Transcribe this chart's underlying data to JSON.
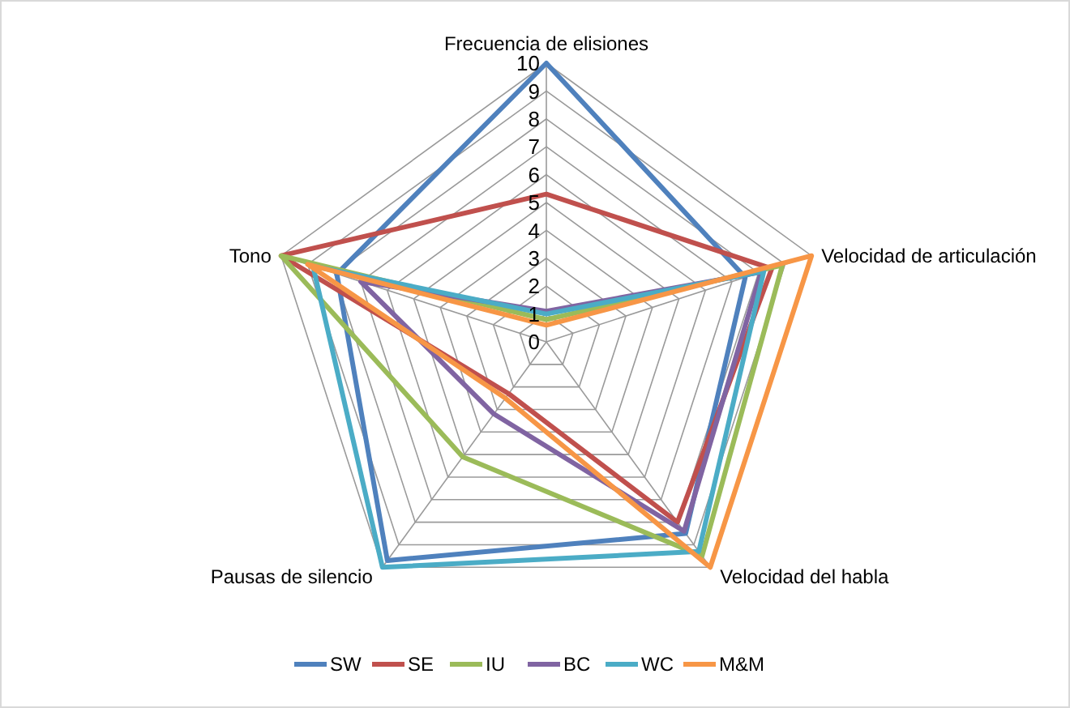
{
  "chart_data": {
    "type": "radar",
    "categories": [
      "Frecuencia de elisiones",
      "Velocidad de articulación",
      "Velocidad del habla",
      "Pausas de silencio",
      "Tono"
    ],
    "series": [
      {
        "name": "SW",
        "color": "#4f81bd",
        "values": [
          10,
          7.5,
          8.5,
          9.7,
          7.9
        ]
      },
      {
        "name": "SE",
        "color": "#c0504d",
        "values": [
          5.3,
          8.5,
          8.0,
          2.3,
          10
        ]
      },
      {
        "name": "IU",
        "color": "#9bbb59",
        "values": [
          0.8,
          8.9,
          9.5,
          5.1,
          10
        ]
      },
      {
        "name": "BC",
        "color": "#8064a2",
        "values": [
          1.1,
          8.1,
          8.4,
          3.2,
          7.0
        ]
      },
      {
        "name": "WC",
        "color": "#4bacc6",
        "values": [
          1.0,
          8.2,
          9.3,
          10,
          8.8
        ]
      },
      {
        "name": "M&M",
        "color": "#f79646",
        "values": [
          0.6,
          10,
          10,
          2.5,
          9.0
        ]
      }
    ],
    "ylim": [
      0,
      10
    ],
    "yticks": [
      0,
      1,
      2,
      3,
      4,
      5,
      6,
      7,
      8,
      9,
      10
    ],
    "grid": true,
    "legend": "bottom",
    "marker": "none",
    "line_style": "solid"
  }
}
